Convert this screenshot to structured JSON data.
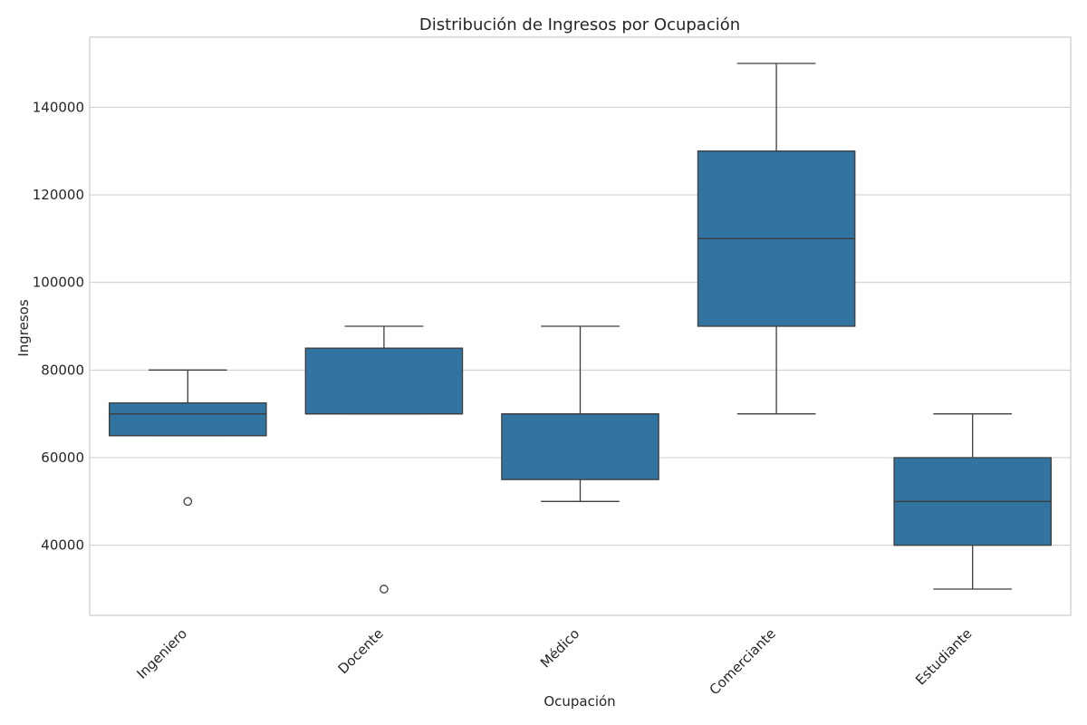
{
  "chart_data": {
    "type": "box",
    "title": "Distribución de Ingresos por Ocupación",
    "xlabel": "Ocupación",
    "ylabel": "Ingresos",
    "ylim": [
      24000,
      156000
    ],
    "yticks": [
      40000,
      60000,
      80000,
      100000,
      120000,
      140000
    ],
    "grid": "horizontal",
    "box_color": "#3274a1",
    "categories": [
      "Ingeniero",
      "Docente",
      "Médico",
      "Comerciante",
      "Estudiante"
    ],
    "boxes": [
      {
        "category": "Ingeniero",
        "whisker_low": 65000,
        "q1": 65000,
        "median": 70000,
        "q3": 72500,
        "whisker_high": 80000,
        "outliers": [
          50000
        ]
      },
      {
        "category": "Docente",
        "whisker_low": 70000,
        "q1": 70000,
        "median": 70000,
        "q3": 85000,
        "whisker_high": 90000,
        "outliers": [
          30000
        ]
      },
      {
        "category": "Médico",
        "whisker_low": 50000,
        "q1": 55000,
        "median": 70000,
        "q3": 70000,
        "whisker_high": 90000,
        "outliers": []
      },
      {
        "category": "Comerciante",
        "whisker_low": 70000,
        "q1": 90000,
        "median": 110000,
        "q3": 130000,
        "whisker_high": 150000,
        "outliers": []
      },
      {
        "category": "Estudiante",
        "whisker_low": 30000,
        "q1": 40000,
        "median": 50000,
        "q3": 60000,
        "whisker_high": 70000,
        "outliers": []
      }
    ]
  }
}
